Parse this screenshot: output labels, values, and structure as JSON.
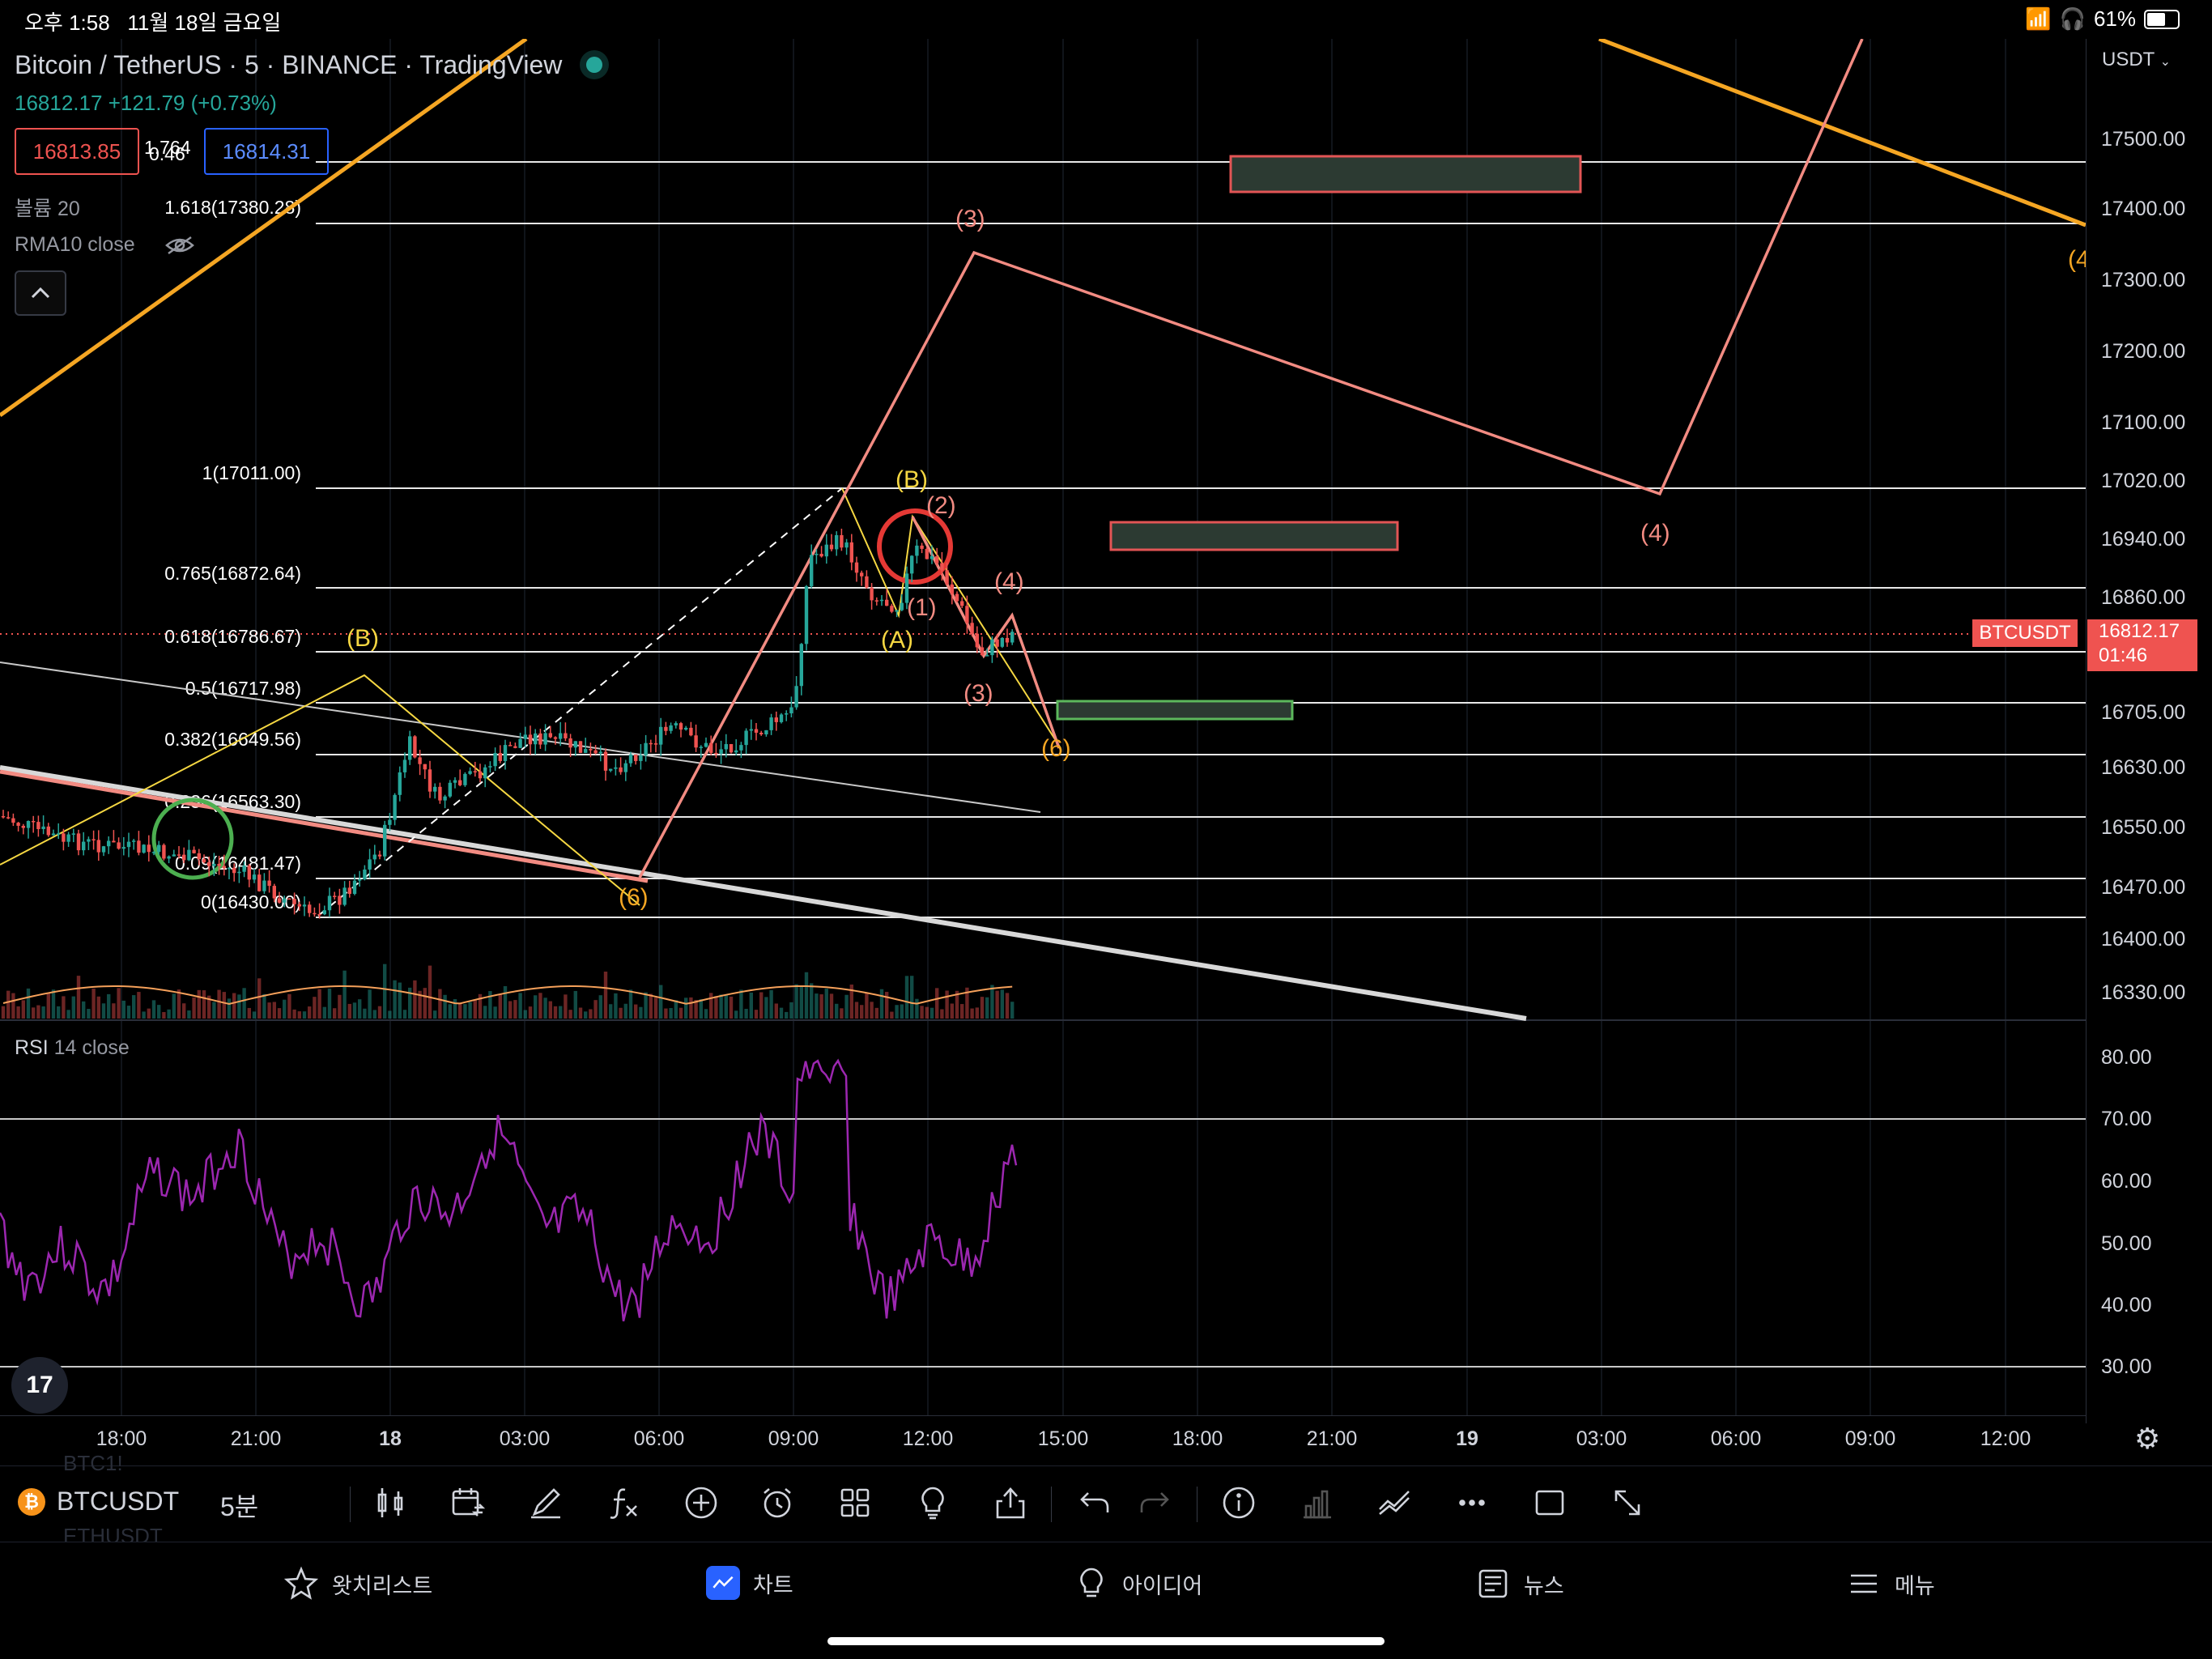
{
  "status_bar": {
    "time": "오후 1:58",
    "date": "11월 18일 금요일",
    "battery": "61%"
  },
  "header": {
    "symbol_title": "Bitcoin / TetherUS · 5 · BINANCE · TradingView",
    "last_price": "16812.17",
    "change": "+121.79 (+0.73%)",
    "bid": "16813.85",
    "ask": "16814.31",
    "volume_label": "볼륨 20",
    "rma_label": "RMA10 close"
  },
  "currency_selector": "USDT",
  "price_axis_labels": [
    "17500.00",
    "17400.00",
    "17300.00",
    "17200.00",
    "17100.00",
    "17020.00",
    "16940.00",
    "16860.00",
    "16705.00",
    "16630.00",
    "16550.00",
    "16470.00",
    "16400.00",
    "16330.00"
  ],
  "current_price_tag": {
    "symbol": "BTCUSDT",
    "price": "16812.17",
    "countdown": "01:46"
  },
  "fib_levels": [
    "1.618(17380.28)",
    "1(17011.00)",
    "0.765(16872.64)",
    "0.618(16786.67)",
    "0.5(16717.98)",
    "0.382(16649.56)",
    "0.236(16563.30)",
    "0.09(16481.47)",
    "0(16430.00)"
  ],
  "fib_partial_labels": [
    "1.764",
    "0.46"
  ],
  "wave_labels": {
    "B_yellow_left": "(B)",
    "six_bottom": "(6)",
    "three_top": "(3)",
    "B_yellow_top": "(B)",
    "two": "(2)",
    "one": "(1)",
    "A": "(A)",
    "four_small": "(4)",
    "three_small": "(3)",
    "six_right": "(6)",
    "four_right": "(4)",
    "four_edge": "(4"
  },
  "rsi": {
    "label": "RSI 14 close",
    "axis_labels": [
      "80.00",
      "70.00",
      "60.00",
      "50.00",
      "40.00",
      "30.00"
    ]
  },
  "time_axis": [
    "18:00",
    "21:00",
    "18",
    "03:00",
    "06:00",
    "09:00",
    "12:00",
    "15:00",
    "18:00",
    "21:00",
    "19",
    "03:00",
    "06:00",
    "09:00",
    "12:00"
  ],
  "toolbar": {
    "symbol": "BTCUSDT",
    "interval": "5분",
    "ghost_items": [
      "BTC1!",
      "ETHUSDT"
    ]
  },
  "bottom_nav": {
    "watchlist": "왓치리스트",
    "chart": "차트",
    "ideas": "아이디어",
    "news": "뉴스",
    "menu": "메뉴"
  },
  "logo_text": "17",
  "colors": {
    "up": "#26a69a",
    "down": "#ef5350",
    "wave_red": "#f28b82",
    "wave_yellow": "#f5d742",
    "orange": "#f5a623",
    "rsi": "#9c27b0"
  }
}
